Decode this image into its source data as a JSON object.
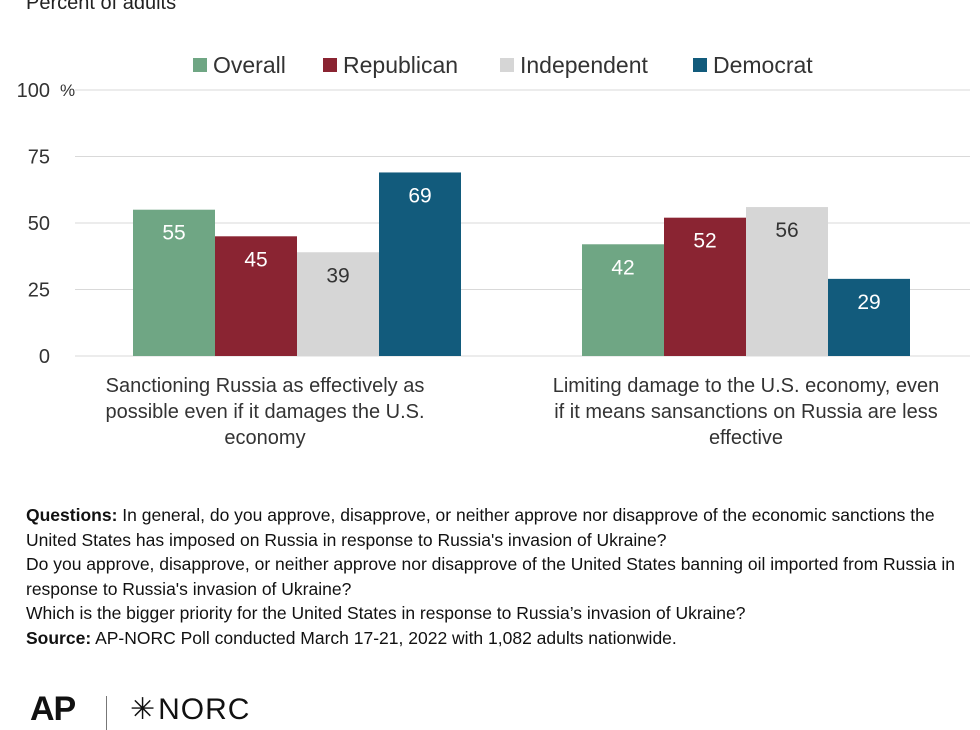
{
  "subtitle": "Percent of adults",
  "chart_data": {
    "type": "bar",
    "title": "",
    "ylabel": "",
    "ylim": [
      0,
      100
    ],
    "y_ticks": [
      0,
      25,
      50,
      75,
      100
    ],
    "y_unit_label": "%",
    "legend_position": "top",
    "grid": true,
    "categories": [
      "Sanctioning Russia as effectively as possible even if it damages the U.S. economy",
      "Limiting damage to the U.S. economy, even if it means sansanctions on Russia are less effective"
    ],
    "category_lines": [
      [
        "Sanctioning Russia as effectively as",
        "possible even if it damages the U.S.",
        "economy"
      ],
      [
        "Limiting damage to the U.S. economy, even",
        "if it means sansanctions on Russia are less",
        "effective"
      ]
    ],
    "series": [
      {
        "name": "Overall",
        "color": "#6fa684",
        "label_color": "#ffffff",
        "values": [
          55,
          42
        ]
      },
      {
        "name": "Republican",
        "color": "#8a2432",
        "label_color": "#ffffff",
        "values": [
          45,
          52
        ]
      },
      {
        "name": "Independent",
        "color": "#d6d6d6",
        "label_color": "#333333",
        "values": [
          39,
          56
        ]
      },
      {
        "name": "Democrat",
        "color": "#125b7c",
        "label_color": "#ffffff",
        "values": [
          69,
          29
        ]
      }
    ]
  },
  "notes": {
    "questions_label": "Questions:",
    "q1": "In general, do you approve, disapprove, or neither approve nor disapprove of the economic sanctions the United States has imposed on Russia in response to Russia's invasion of Ukraine?",
    "q2": "Do you approve, disapprove, or neither approve nor disapprove of the United States banning oil imported from Russia in response to Russia's invasion of Ukraine?",
    "q3": "Which is the bigger priority for the United States in response to Russia’s invasion of Ukraine?",
    "source_label": "Source:",
    "source": "AP-NORC Poll conducted March 17-21, 2022 with 1,082 adults nationwide."
  },
  "logos": {
    "ap": "AP",
    "norc": "NORC"
  }
}
